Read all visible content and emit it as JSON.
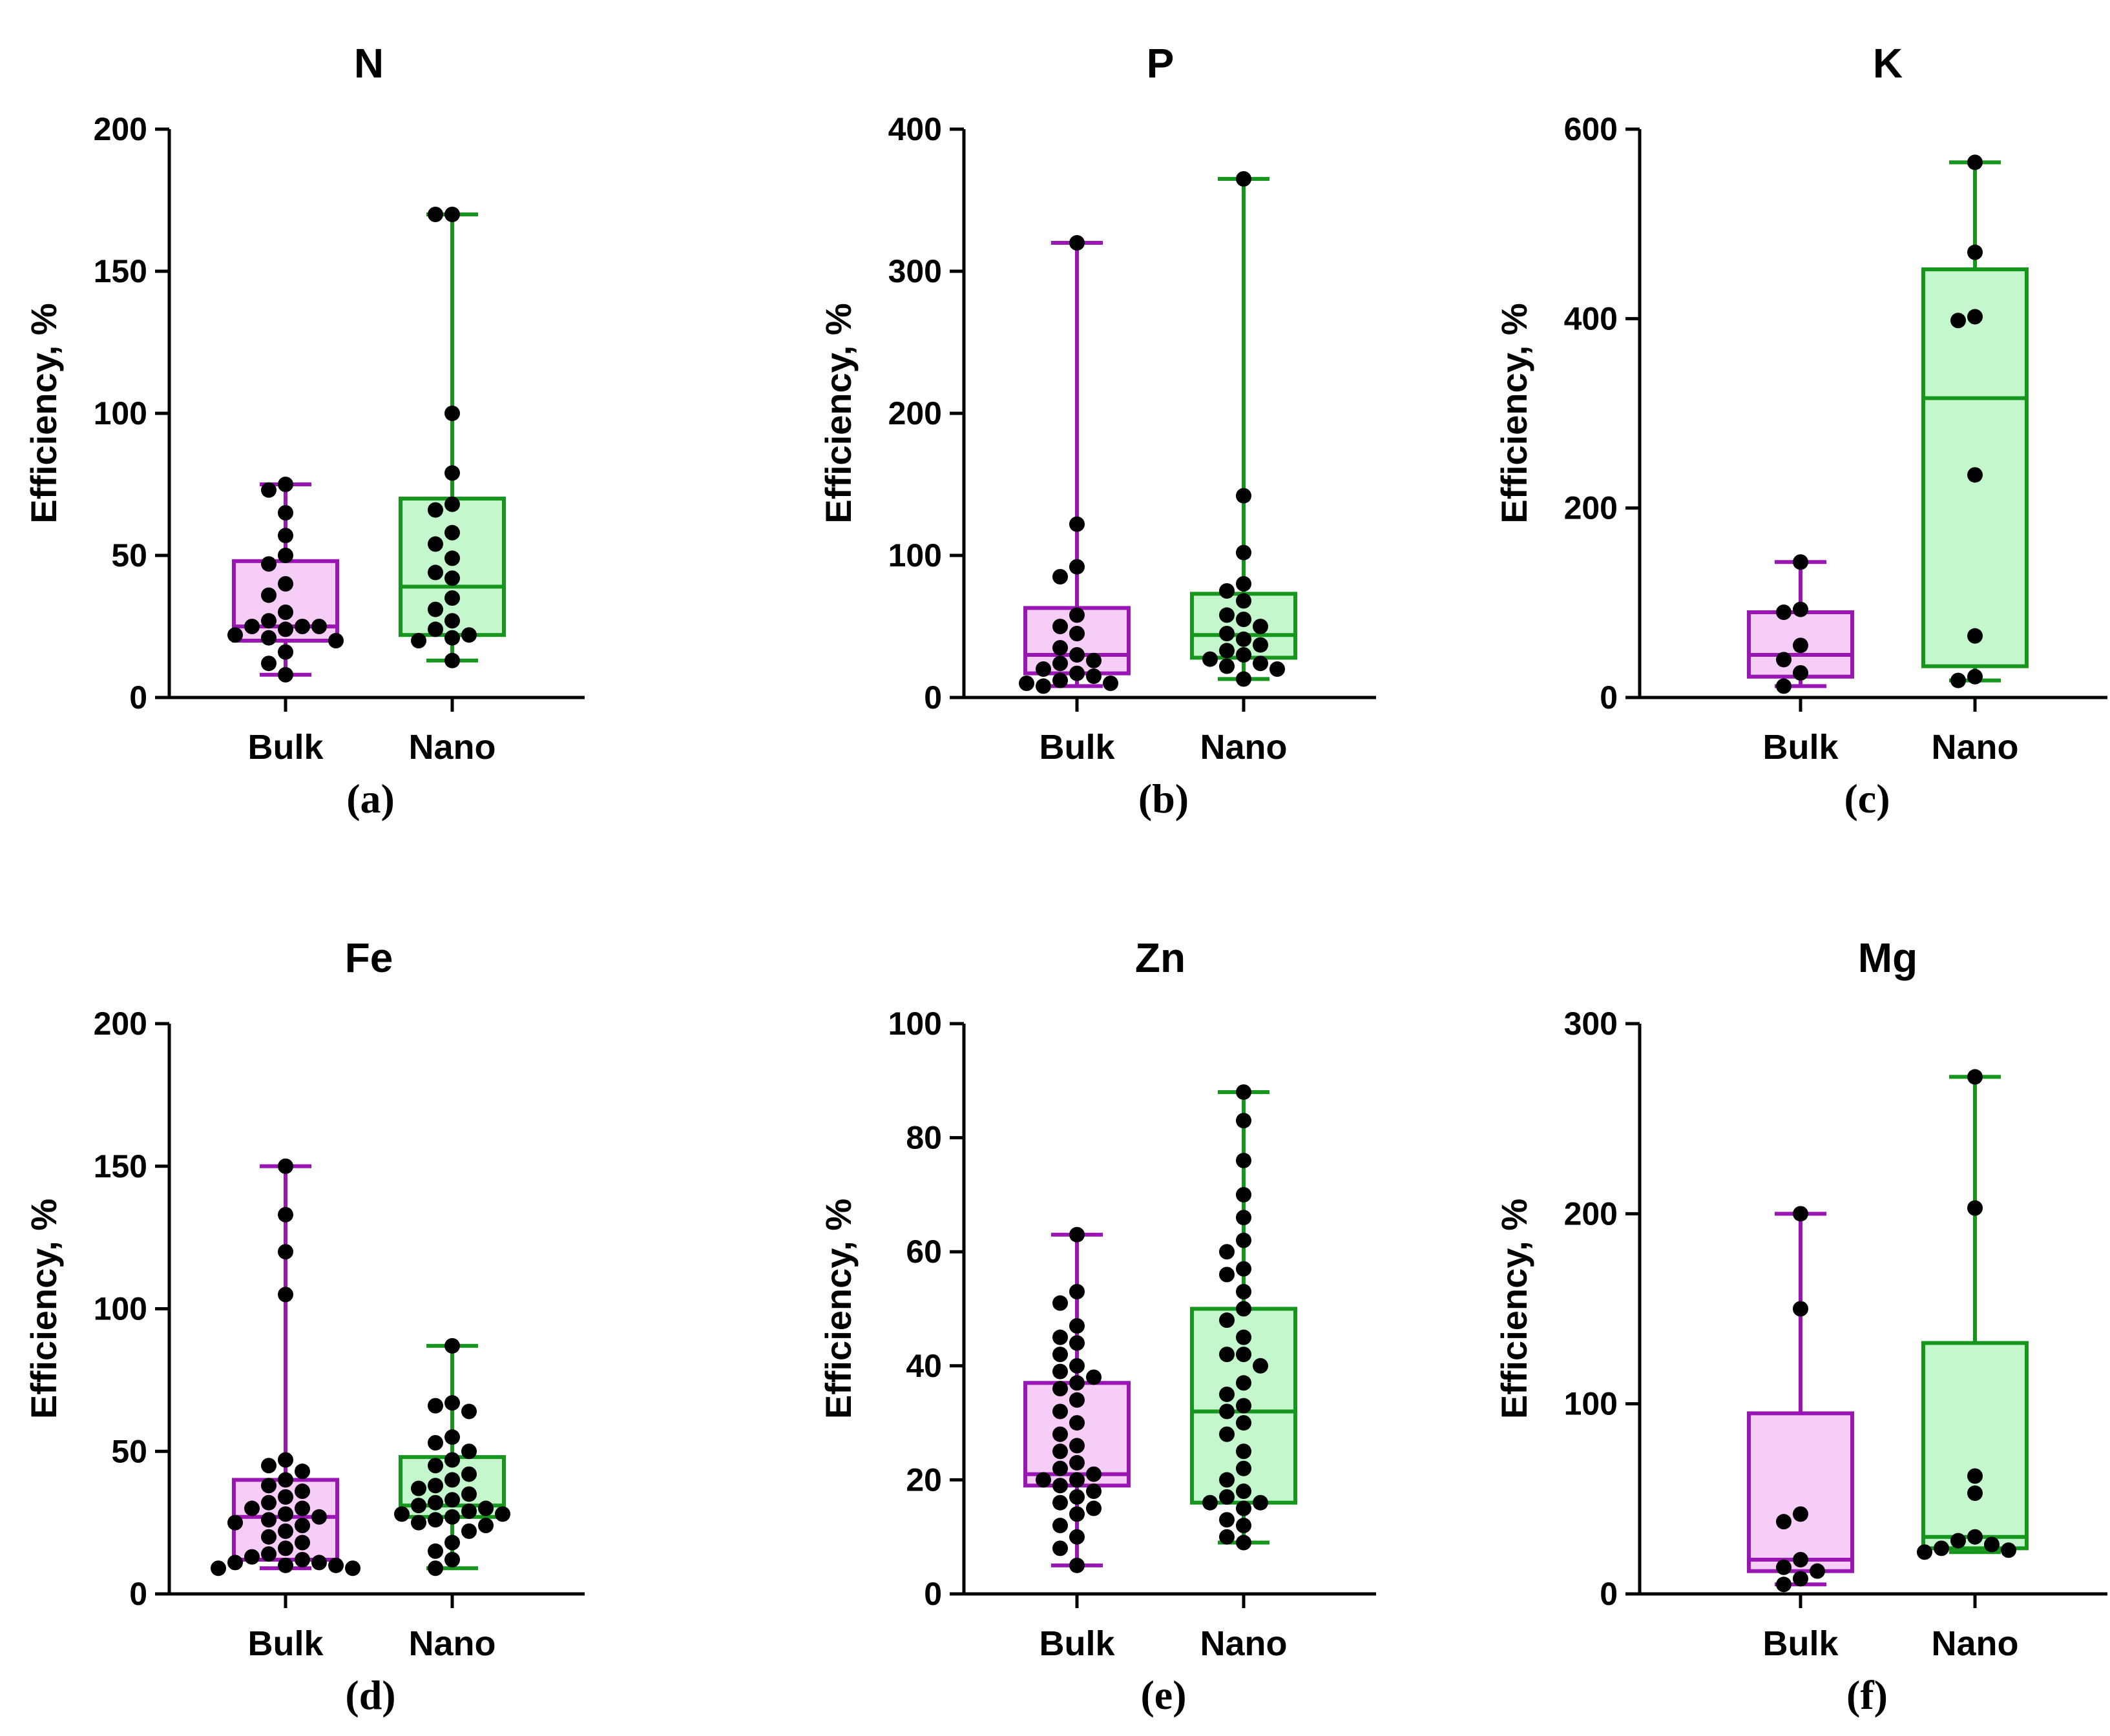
{
  "chart_data": [
    {
      "type": "box",
      "panel_label": "(a)",
      "title": "N",
      "ylabel": "Efficiency, %",
      "ylim": [
        0,
        200
      ],
      "yticks": [
        0,
        50,
        100,
        150,
        200
      ],
      "categories": [
        "Bulk",
        "Nano"
      ],
      "series": [
        {
          "name": "Bulk",
          "min": 8,
          "q1": 20,
          "median": 25,
          "q3": 48,
          "max": 75,
          "points": [
            75,
            73,
            65,
            57,
            50,
            47,
            40,
            36,
            30,
            27,
            25,
            25,
            25,
            24,
            22,
            21,
            20,
            16,
            12,
            8
          ]
        },
        {
          "name": "Nano",
          "min": 13,
          "q1": 22,
          "median": 39,
          "q3": 70,
          "max": 170,
          "points": [
            170,
            170,
            100,
            79,
            68,
            66,
            58,
            54,
            49,
            44,
            42,
            35,
            31,
            27,
            24,
            22,
            21,
            20,
            13
          ]
        }
      ]
    },
    {
      "type": "box",
      "panel_label": "(b)",
      "title": "P",
      "ylabel": "Efficiency, %",
      "ylim": [
        0,
        400
      ],
      "yticks": [
        0,
        100,
        200,
        300,
        400
      ],
      "categories": [
        "Bulk",
        "Nano"
      ],
      "series": [
        {
          "name": "Bulk",
          "min": 8,
          "q1": 17,
          "median": 30,
          "q3": 63,
          "max": 320,
          "points": [
            320,
            122,
            92,
            85,
            58,
            50,
            45,
            35,
            30,
            26,
            24,
            20,
            17,
            15,
            12,
            10,
            10,
            8
          ]
        },
        {
          "name": "Nano",
          "min": 13,
          "q1": 28,
          "median": 44,
          "q3": 73,
          "max": 365,
          "points": [
            365,
            142,
            102,
            80,
            75,
            68,
            58,
            55,
            50,
            45,
            41,
            37,
            33,
            30,
            27,
            24,
            22,
            20,
            13
          ]
        }
      ]
    },
    {
      "type": "box",
      "panel_label": "(c)",
      "title": "K",
      "ylabel": "Efficiency, %",
      "ylim": [
        0,
        600
      ],
      "yticks": [
        0,
        200,
        400,
        600
      ],
      "categories": [
        "Bulk",
        "Nano"
      ],
      "series": [
        {
          "name": "Bulk",
          "min": 12,
          "q1": 22,
          "median": 45,
          "q3": 90,
          "max": 143,
          "points": [
            143,
            93,
            90,
            55,
            40,
            26,
            12
          ]
        },
        {
          "name": "Nano",
          "min": 18,
          "q1": 33,
          "median": 316,
          "q3": 452,
          "max": 565,
          "points": [
            565,
            470,
            402,
            398,
            235,
            65,
            22,
            18
          ]
        }
      ]
    },
    {
      "type": "box",
      "panel_label": "(d)",
      "title": "Fe",
      "ylabel": "Efficiency, %",
      "ylim": [
        0,
        200
      ],
      "yticks": [
        0,
        50,
        100,
        150,
        200
      ],
      "categories": [
        "Bulk",
        "Nano"
      ],
      "series": [
        {
          "name": "Bulk",
          "min": 9,
          "q1": 12,
          "median": 27,
          "q3": 40,
          "max": 150,
          "points": [
            150,
            133,
            120,
            105,
            47,
            45,
            43,
            40,
            38,
            36,
            34,
            32,
            30,
            30,
            28,
            27,
            26,
            25,
            24,
            22,
            20,
            18,
            16,
            14,
            13,
            12,
            11,
            11,
            10,
            10,
            9,
            9
          ]
        },
        {
          "name": "Nano",
          "min": 9,
          "q1": 27,
          "median": 31,
          "q3": 48,
          "max": 87,
          "points": [
            87,
            67,
            66,
            64,
            55,
            53,
            50,
            47,
            45,
            42,
            40,
            38,
            37,
            35,
            33,
            32,
            31,
            30,
            29,
            28,
            28,
            27,
            26,
            25,
            24,
            22,
            18,
            15,
            12,
            9
          ]
        }
      ]
    },
    {
      "type": "box",
      "panel_label": "(e)",
      "title": "Zn",
      "ylabel": "Efficiency, %",
      "ylim": [
        0,
        100
      ],
      "yticks": [
        0,
        20,
        40,
        60,
        80,
        100
      ],
      "categories": [
        "Bulk",
        "Nano"
      ],
      "series": [
        {
          "name": "Bulk",
          "min": 5,
          "q1": 19,
          "median": 21,
          "q3": 37,
          "max": 63,
          "points": [
            63,
            53,
            51,
            47,
            45,
            44,
            42,
            40,
            39,
            38,
            37,
            36,
            34,
            32,
            30,
            28,
            26,
            25,
            23,
            22,
            21,
            20,
            20,
            19,
            18,
            17,
            16,
            15,
            14,
            12,
            10,
            8,
            5
          ]
        },
        {
          "name": "Nano",
          "min": 9,
          "q1": 16,
          "median": 32,
          "q3": 50,
          "max": 88,
          "points": [
            88,
            83,
            76,
            70,
            66,
            62,
            60,
            57,
            56,
            53,
            50,
            48,
            45,
            42,
            42,
            40,
            37,
            35,
            33,
            32,
            30,
            28,
            25,
            22,
            20,
            18,
            17,
            16,
            16,
            15,
            13,
            12,
            10,
            9
          ]
        }
      ]
    },
    {
      "type": "box",
      "panel_label": "(f)",
      "title": "Mg",
      "ylabel": "Efficiency, %",
      "ylim": [
        0,
        300
      ],
      "yticks": [
        0,
        100,
        200,
        300
      ],
      "categories": [
        "Bulk",
        "Nano"
      ],
      "series": [
        {
          "name": "Bulk",
          "min": 5,
          "q1": 12,
          "median": 18,
          "q3": 95,
          "max": 200,
          "points": [
            200,
            150,
            42,
            38,
            18,
            14,
            12,
            8,
            5
          ]
        },
        {
          "name": "Nano",
          "min": 22,
          "q1": 24,
          "median": 30,
          "q3": 132,
          "max": 272,
          "points": [
            272,
            203,
            62,
            53,
            30,
            28,
            26,
            24,
            23,
            22
          ]
        }
      ]
    }
  ],
  "style": {
    "bulk_stroke": "#9a16b4",
    "bulk_fill": "#f6cdf6",
    "nano_stroke": "#17961e",
    "nano_fill": "#c5f7cd",
    "point_color": "#000000"
  }
}
